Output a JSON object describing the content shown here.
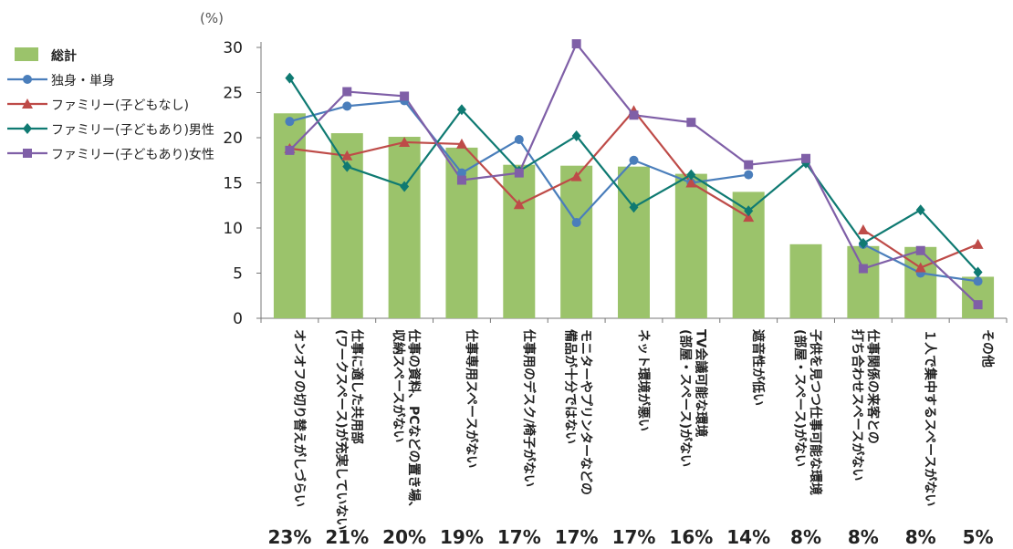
{
  "chart_data": {
    "type": "bar+line",
    "unit_label": "(%)",
    "ylim": [
      0,
      30
    ],
    "yticks": [
      0,
      5,
      10,
      15,
      20,
      25,
      30
    ],
    "categories": [
      "オンオフの切り替えがしづらい",
      "仕事に適した共用部\n(ワークスペース)が充実していない",
      "仕事の資料、PCなどの置き場、\n収納スペースがない",
      "仕事専用スペースがない",
      "仕事用のデスク/椅子がない",
      "モニターやプリンターなどの\n備品が十分ではない",
      "ネット環境が悪い",
      "TV会議可能な環境\n(部屋・スペース)がない",
      "遮音性が低い",
      "子供を見つつ仕事可能な環境\n(部屋・スペース)がない",
      "仕事関係の来客との\n打ち合わせスペースがない",
      "１人で集中するスペースがない",
      "その他"
    ],
    "bar_series": {
      "name": "総計",
      "color": "#9bc36b",
      "values": [
        22.7,
        20.5,
        20.1,
        18.9,
        17.0,
        16.9,
        16.8,
        16.0,
        14.0,
        8.2,
        8.0,
        7.9,
        4.6
      ],
      "labels": [
        "23%",
        "21%",
        "20%",
        "19%",
        "17%",
        "17%",
        "17%",
        "16%",
        "14%",
        "8%",
        "8%",
        "8%",
        "5%"
      ]
    },
    "line_series": [
      {
        "name": "独身・単身",
        "color": "#4a7ebb",
        "marker": "circle",
        "values": [
          21.8,
          23.5,
          24.1,
          16.1,
          19.8,
          10.6,
          17.5,
          15.0,
          15.9,
          null,
          8.2,
          5.0,
          4.1
        ]
      },
      {
        "name": "ファミリー(子どもなし)",
        "color": "#be4b48",
        "marker": "triangle",
        "values": [
          18.8,
          18.0,
          19.5,
          19.3,
          12.6,
          15.7,
          23.0,
          15.0,
          11.2,
          null,
          9.8,
          5.6,
          8.2
        ]
      },
      {
        "name": "ファミリー(子どもあり)男性",
        "color": "#0f7a72",
        "marker": "diamond",
        "values": [
          26.6,
          16.8,
          14.6,
          23.1,
          16.3,
          20.2,
          12.3,
          15.9,
          11.9,
          17.2,
          8.3,
          12.0,
          5.1
        ]
      },
      {
        "name": "ファミリー(子どもあり)女性",
        "color": "#7f5fa7",
        "marker": "square",
        "values": [
          18.6,
          25.1,
          24.6,
          15.3,
          16.1,
          30.4,
          22.5,
          21.7,
          17.0,
          17.7,
          5.5,
          7.5,
          1.5
        ]
      }
    ],
    "grid": false,
    "legend_position": "left"
  }
}
